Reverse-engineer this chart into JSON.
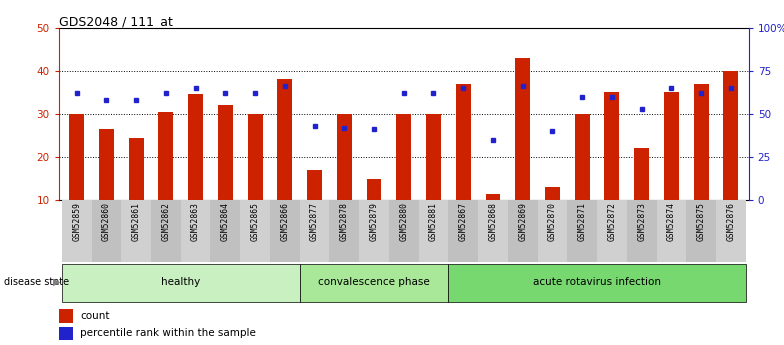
{
  "title": "GDS2048 / 111_at",
  "samples": [
    "GSM52859",
    "GSM52860",
    "GSM52861",
    "GSM52862",
    "GSM52863",
    "GSM52864",
    "GSM52865",
    "GSM52866",
    "GSM52877",
    "GSM52878",
    "GSM52879",
    "GSM52880",
    "GSM52881",
    "GSM52867",
    "GSM52868",
    "GSM52869",
    "GSM52870",
    "GSM52871",
    "GSM52872",
    "GSM52873",
    "GSM52874",
    "GSM52875",
    "GSM52876"
  ],
  "count_values": [
    30,
    26.5,
    24.5,
    30.5,
    34.5,
    32,
    30,
    38,
    17,
    30,
    15,
    30,
    30,
    37,
    11.5,
    43,
    13,
    30,
    35,
    22,
    35,
    37,
    40
  ],
  "percentile_values": [
    62,
    58,
    58,
    62,
    65,
    62,
    62,
    66,
    43,
    42,
    41,
    62,
    62,
    65,
    35,
    66,
    40,
    60,
    60,
    53,
    65,
    62,
    65
  ],
  "ylim_left": [
    10,
    50
  ],
  "ylim_right": [
    0,
    100
  ],
  "yticks_left": [
    10,
    20,
    30,
    40,
    50
  ],
  "yticks_right": [
    0,
    25,
    50,
    75,
    100
  ],
  "ytick_labels_right": [
    "0",
    "25",
    "50",
    "75",
    "100%"
  ],
  "bar_color": "#cc2200",
  "dot_color": "#2222cc",
  "left_axis_color": "#cc2200",
  "right_axis_color": "#2222cc",
  "legend_count": "count",
  "legend_percentile": "percentile rank within the sample",
  "bar_width": 0.5,
  "group_defs": [
    {
      "label": "healthy",
      "start": 0,
      "end": 8,
      "color": "#c8f0c0"
    },
    {
      "label": "convalescence phase",
      "start": 8,
      "end": 13,
      "color": "#a8e898"
    },
    {
      "label": "acute rotavirus infection",
      "start": 13,
      "end": 23,
      "color": "#78d870"
    }
  ],
  "label_bg_even": "#d0d0d0",
  "label_bg_odd": "#c0c0c0"
}
